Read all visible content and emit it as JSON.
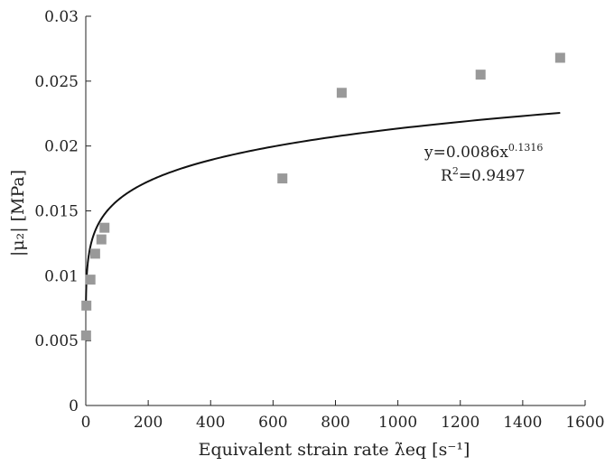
{
  "chart_data": {
    "type": "scatter",
    "xlabel": "Equivalent strain rate λ̇eq [s⁻¹]",
    "ylabel": "|μ₂| [MPa]",
    "xlim": [
      0,
      1600
    ],
    "ylim": [
      0,
      0.03
    ],
    "x_ticks": [
      0,
      200,
      400,
      600,
      800,
      1000,
      1200,
      1400,
      1600
    ],
    "x_tick_labels": [
      "0",
      "200",
      "400",
      "600",
      "800",
      "1000",
      "1200",
      "1400",
      "1600"
    ],
    "y_ticks": [
      0,
      0.005,
      0.01,
      0.015,
      0.02,
      0.025,
      0.03
    ],
    "y_tick_labels": [
      "0",
      "0.005",
      "0.01",
      "0.015",
      "0.02",
      "0.025",
      "0.03"
    ],
    "grid": false,
    "legend": false,
    "series": [
      {
        "kind": "scatter",
        "marker": "square",
        "color": "#999999",
        "points": [
          {
            "x": 1,
            "y": 0.0054
          },
          {
            "x": 2,
            "y": 0.0077
          },
          {
            "x": 15,
            "y": 0.0097
          },
          {
            "x": 30,
            "y": 0.0117
          },
          {
            "x": 50,
            "y": 0.0128
          },
          {
            "x": 60,
            "y": 0.0137
          },
          {
            "x": 630,
            "y": 0.0175
          },
          {
            "x": 820,
            "y": 0.0241
          },
          {
            "x": 1265,
            "y": 0.0255
          },
          {
            "x": 1520,
            "y": 0.0268
          }
        ]
      },
      {
        "kind": "fit",
        "model": "power",
        "a": 0.0086,
        "b": 0.1316,
        "x_range": [
          0.3,
          1520
        ],
        "color": "#111111"
      }
    ],
    "annotation": {
      "equation_base": "y=0.0086x",
      "equation_exponent": "0.1316",
      "r2_prefix": "R",
      "r2_exponent": "2",
      "r2_value": "=0.9497"
    }
  }
}
